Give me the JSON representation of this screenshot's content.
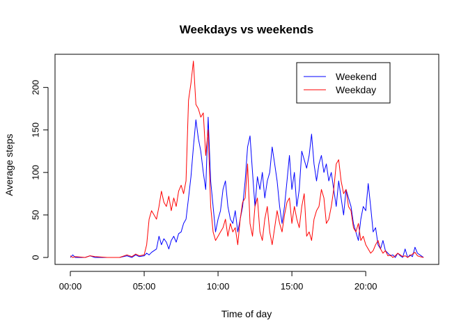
{
  "chart_data": {
    "type": "line",
    "title": "Weekdays vs weekends",
    "xlabel": "Time of day",
    "ylabel": "Average steps",
    "xlim": [
      0,
      1440
    ],
    "ylim": [
      0,
      230
    ],
    "x_ticks": [
      {
        "value": 0,
        "label": "00:00"
      },
      {
        "value": 300,
        "label": "05:00"
      },
      {
        "value": 600,
        "label": "10:00"
      },
      {
        "value": 900,
        "label": "15:00"
      },
      {
        "value": 1200,
        "label": "20:00"
      }
    ],
    "y_ticks": [
      {
        "value": 0,
        "label": "0"
      },
      {
        "value": 50,
        "label": "50"
      },
      {
        "value": 100,
        "label": "100"
      },
      {
        "value": 150,
        "label": "150"
      },
      {
        "value": 200,
        "label": "200"
      }
    ],
    "grid": false,
    "legend_position": "top-right",
    "series": [
      {
        "name": "Weekend",
        "color": "#0000ff",
        "points": [
          [
            0,
            0
          ],
          [
            10,
            3
          ],
          [
            20,
            0
          ],
          [
            60,
            0
          ],
          [
            80,
            2
          ],
          [
            100,
            0
          ],
          [
            150,
            0
          ],
          [
            200,
            0
          ],
          [
            230,
            2
          ],
          [
            250,
            0
          ],
          [
            265,
            3
          ],
          [
            280,
            1
          ],
          [
            300,
            2
          ],
          [
            310,
            5
          ],
          [
            320,
            3
          ],
          [
            330,
            6
          ],
          [
            340,
            8
          ],
          [
            350,
            10
          ],
          [
            360,
            25
          ],
          [
            370,
            15
          ],
          [
            380,
            22
          ],
          [
            390,
            18
          ],
          [
            400,
            10
          ],
          [
            410,
            20
          ],
          [
            420,
            25
          ],
          [
            430,
            18
          ],
          [
            440,
            28
          ],
          [
            450,
            30
          ],
          [
            460,
            40
          ],
          [
            470,
            45
          ],
          [
            480,
            70
          ],
          [
            490,
            95
          ],
          [
            500,
            130
          ],
          [
            510,
            162
          ],
          [
            520,
            140
          ],
          [
            530,
            125
          ],
          [
            540,
            100
          ],
          [
            550,
            80
          ],
          [
            560,
            165
          ],
          [
            570,
            90
          ],
          [
            580,
            60
          ],
          [
            590,
            30
          ],
          [
            600,
            45
          ],
          [
            610,
            55
          ],
          [
            620,
            80
          ],
          [
            630,
            90
          ],
          [
            640,
            60
          ],
          [
            650,
            45
          ],
          [
            660,
            40
          ],
          [
            670,
            55
          ],
          [
            680,
            30
          ],
          [
            690,
            45
          ],
          [
            700,
            60
          ],
          [
            710,
            90
          ],
          [
            720,
            130
          ],
          [
            730,
            143
          ],
          [
            740,
            100
          ],
          [
            750,
            60
          ],
          [
            760,
            95
          ],
          [
            770,
            80
          ],
          [
            780,
            100
          ],
          [
            790,
            70
          ],
          [
            800,
            90
          ],
          [
            810,
            100
          ],
          [
            820,
            130
          ],
          [
            830,
            110
          ],
          [
            840,
            90
          ],
          [
            850,
            60
          ],
          [
            860,
            40
          ],
          [
            870,
            60
          ],
          [
            880,
            90
          ],
          [
            890,
            120
          ],
          [
            900,
            80
          ],
          [
            910,
            100
          ],
          [
            920,
            60
          ],
          [
            930,
            80
          ],
          [
            940,
            125
          ],
          [
            950,
            115
          ],
          [
            960,
            105
          ],
          [
            970,
            120
          ],
          [
            980,
            145
          ],
          [
            990,
            110
          ],
          [
            1000,
            90
          ],
          [
            1010,
            110
          ],
          [
            1020,
            120
          ],
          [
            1030,
            100
          ],
          [
            1040,
            110
          ],
          [
            1050,
            90
          ],
          [
            1060,
            100
          ],
          [
            1070,
            80
          ],
          [
            1080,
            60
          ],
          [
            1090,
            90
          ],
          [
            1100,
            70
          ],
          [
            1110,
            50
          ],
          [
            1120,
            80
          ],
          [
            1130,
            70
          ],
          [
            1140,
            60
          ],
          [
            1150,
            40
          ],
          [
            1160,
            30
          ],
          [
            1170,
            20
          ],
          [
            1180,
            45
          ],
          [
            1190,
            60
          ],
          [
            1200,
            55
          ],
          [
            1210,
            87
          ],
          [
            1220,
            60
          ],
          [
            1230,
            30
          ],
          [
            1240,
            35
          ],
          [
            1250,
            15
          ],
          [
            1260,
            10
          ],
          [
            1270,
            20
          ],
          [
            1280,
            8
          ],
          [
            1290,
            5
          ],
          [
            1300,
            2
          ],
          [
            1310,
            3
          ],
          [
            1320,
            0
          ],
          [
            1330,
            5
          ],
          [
            1340,
            2
          ],
          [
            1350,
            0
          ],
          [
            1360,
            10
          ],
          [
            1370,
            0
          ],
          [
            1380,
            3
          ],
          [
            1390,
            1
          ],
          [
            1400,
            12
          ],
          [
            1410,
            5
          ],
          [
            1420,
            3
          ],
          [
            1435,
            0
          ]
        ]
      },
      {
        "name": "Weekday",
        "color": "#ff0000",
        "points": [
          [
            0,
            2
          ],
          [
            10,
            0
          ],
          [
            20,
            1
          ],
          [
            60,
            0
          ],
          [
            80,
            2
          ],
          [
            100,
            1
          ],
          [
            150,
            0
          ],
          [
            200,
            0
          ],
          [
            230,
            3
          ],
          [
            250,
            1
          ],
          [
            265,
            4
          ],
          [
            280,
            2
          ],
          [
            300,
            3
          ],
          [
            310,
            15
          ],
          [
            320,
            45
          ],
          [
            330,
            55
          ],
          [
            340,
            50
          ],
          [
            350,
            45
          ],
          [
            360,
            60
          ],
          [
            370,
            78
          ],
          [
            380,
            65
          ],
          [
            390,
            60
          ],
          [
            400,
            72
          ],
          [
            410,
            55
          ],
          [
            420,
            70
          ],
          [
            430,
            60
          ],
          [
            440,
            78
          ],
          [
            450,
            85
          ],
          [
            460,
            75
          ],
          [
            470,
            90
          ],
          [
            480,
            185
          ],
          [
            490,
            205
          ],
          [
            500,
            231
          ],
          [
            510,
            180
          ],
          [
            520,
            175
          ],
          [
            530,
            165
          ],
          [
            540,
            170
          ],
          [
            550,
            120
          ],
          [
            560,
            150
          ],
          [
            570,
            60
          ],
          [
            580,
            30
          ],
          [
            590,
            20
          ],
          [
            600,
            25
          ],
          [
            610,
            30
          ],
          [
            620,
            35
          ],
          [
            630,
            45
          ],
          [
            640,
            25
          ],
          [
            650,
            40
          ],
          [
            660,
            30
          ],
          [
            670,
            35
          ],
          [
            680,
            15
          ],
          [
            690,
            45
          ],
          [
            700,
            65
          ],
          [
            710,
            70
          ],
          [
            720,
            110
          ],
          [
            730,
            40
          ],
          [
            740,
            25
          ],
          [
            750,
            60
          ],
          [
            760,
            70
          ],
          [
            770,
            30
          ],
          [
            780,
            20
          ],
          [
            790,
            45
          ],
          [
            800,
            60
          ],
          [
            810,
            30
          ],
          [
            820,
            15
          ],
          [
            830,
            35
          ],
          [
            840,
            55
          ],
          [
            850,
            40
          ],
          [
            860,
            30
          ],
          [
            870,
            50
          ],
          [
            880,
            65
          ],
          [
            890,
            70
          ],
          [
            900,
            40
          ],
          [
            910,
            60
          ],
          [
            920,
            45
          ],
          [
            930,
            35
          ],
          [
            940,
            60
          ],
          [
            950,
            75
          ],
          [
            960,
            25
          ],
          [
            970,
            30
          ],
          [
            980,
            20
          ],
          [
            990,
            45
          ],
          [
            1000,
            55
          ],
          [
            1010,
            60
          ],
          [
            1020,
            80
          ],
          [
            1030,
            70
          ],
          [
            1040,
            40
          ],
          [
            1050,
            45
          ],
          [
            1060,
            60
          ],
          [
            1070,
            80
          ],
          [
            1080,
            110
          ],
          [
            1090,
            115
          ],
          [
            1100,
            90
          ],
          [
            1110,
            75
          ],
          [
            1120,
            80
          ],
          [
            1130,
            60
          ],
          [
            1140,
            55
          ],
          [
            1150,
            35
          ],
          [
            1160,
            30
          ],
          [
            1170,
            40
          ],
          [
            1180,
            20
          ],
          [
            1190,
            25
          ],
          [
            1200,
            15
          ],
          [
            1210,
            10
          ],
          [
            1220,
            5
          ],
          [
            1230,
            8
          ],
          [
            1240,
            15
          ],
          [
            1250,
            20
          ],
          [
            1260,
            10
          ],
          [
            1270,
            5
          ],
          [
            1280,
            8
          ],
          [
            1290,
            2
          ],
          [
            1300,
            3
          ],
          [
            1310,
            0
          ],
          [
            1320,
            2
          ],
          [
            1330,
            5
          ],
          [
            1340,
            3
          ],
          [
            1350,
            1
          ],
          [
            1360,
            2
          ],
          [
            1370,
            0
          ],
          [
            1380,
            2
          ],
          [
            1390,
            4
          ],
          [
            1400,
            6
          ],
          [
            1410,
            2
          ],
          [
            1420,
            1
          ],
          [
            1435,
            0
          ]
        ]
      }
    ]
  }
}
